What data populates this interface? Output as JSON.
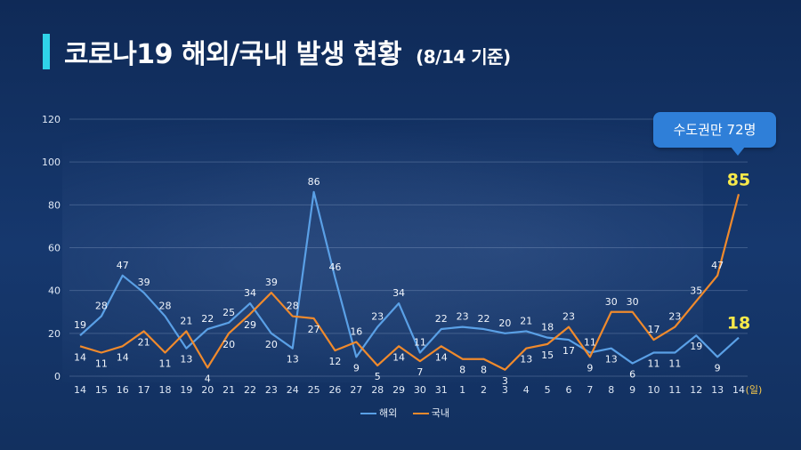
{
  "title": {
    "main": "코로나19 해외/국내 발생 현황",
    "sub": "(8/14 기준)"
  },
  "callout": "수도권만 72명",
  "colors": {
    "overseas": "#5aa0e6",
    "domestic": "#f08a2c",
    "accent": "#f7e94a",
    "title_bar": "#2fd3e9"
  },
  "chart_data": {
    "type": "line",
    "x": [
      "14",
      "15",
      "16",
      "17",
      "18",
      "19",
      "20",
      "21",
      "22",
      "23",
      "24",
      "25",
      "26",
      "27",
      "28",
      "29",
      "30",
      "31",
      "1",
      "2",
      "3",
      "4",
      "5",
      "6",
      "7",
      "8",
      "9",
      "10",
      "11",
      "12",
      "13",
      "14"
    ],
    "x_unit": "(일)",
    "ylim": [
      0,
      120
    ],
    "yticks": [
      0,
      20,
      40,
      60,
      80,
      100,
      120
    ],
    "grid": true,
    "legend_position": "bottom-center",
    "series": [
      {
        "name": "해외",
        "values": [
          19,
          28,
          47,
          39,
          28,
          13,
          22,
          25,
          34,
          20,
          13,
          86,
          46,
          9,
          23,
          34,
          11,
          22,
          23,
          22,
          20,
          21,
          18,
          17,
          11,
          13,
          6,
          11,
          11,
          19,
          9,
          18
        ]
      },
      {
        "name": "국내",
        "values": [
          14,
          11,
          14,
          21,
          11,
          21,
          4,
          20,
          29,
          39,
          28,
          27,
          12,
          16,
          5,
          14,
          7,
          14,
          8,
          8,
          3,
          13,
          15,
          23,
          9,
          30,
          30,
          17,
          23,
          35,
          47,
          85
        ]
      }
    ]
  }
}
